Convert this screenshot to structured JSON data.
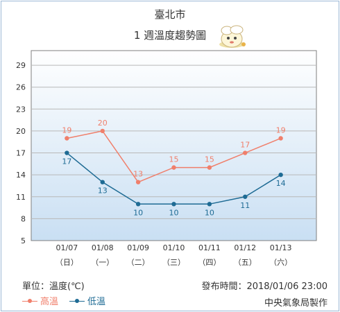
{
  "header": {
    "city": "臺北市",
    "subtitle": "1 週溫度趨勢圖"
  },
  "footer": {
    "unit": "單位：溫度(℃)",
    "published": "發布時間：2018/01/06 23:00",
    "credit": "中央氣象局製作"
  },
  "chart_data": {
    "type": "line",
    "categories": [
      "01/07",
      "01/08",
      "01/09",
      "01/10",
      "01/11",
      "01/12",
      "01/13"
    ],
    "weekdays": [
      "（日）",
      "（一）",
      "（二）",
      "（三）",
      "（四）",
      "（五）",
      "（六）"
    ],
    "series": [
      {
        "name": "高溫",
        "color": "#f07f6b",
        "values": [
          19,
          20,
          13,
          15,
          15,
          17,
          19
        ]
      },
      {
        "name": "低溫",
        "color": "#1e6b94",
        "values": [
          17,
          13,
          10,
          10,
          10,
          11,
          14
        ]
      }
    ],
    "ylim": [
      5,
      31
    ],
    "yticks": [
      5,
      8,
      11,
      14,
      17,
      20,
      23,
      26,
      29
    ],
    "grid": true,
    "legend": "bottom-left"
  }
}
